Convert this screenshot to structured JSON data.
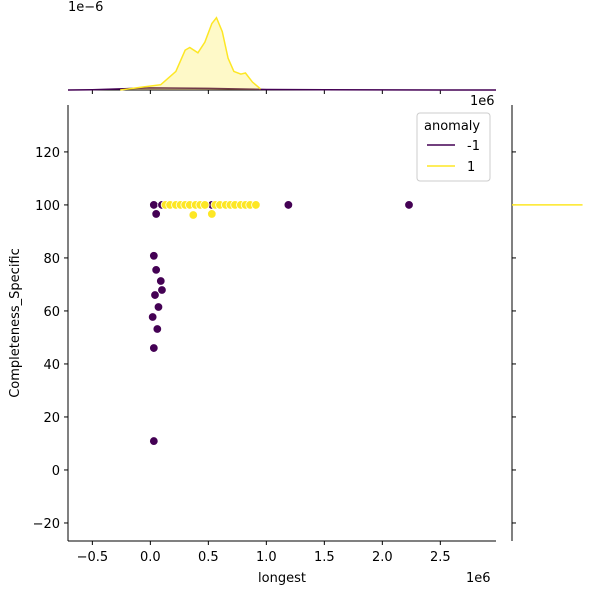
{
  "chart_data": [
    {
      "type": "scatter",
      "x_label": "longest",
      "y_label": "Completeness_Specific",
      "x_offset_label": "1e6",
      "xlim": [
        -0.71,
        2.98
      ],
      "ylim": [
        -26.8,
        137.7
      ],
      "xticks": [
        {
          "value": -0.5,
          "label": "−0.5"
        },
        {
          "value": 0,
          "label": "0.0"
        },
        0.5,
        {
          "value": 1,
          "label": "1.0"
        },
        1.5,
        {
          "value": 2,
          "label": "2.0"
        },
        2.5
      ],
      "yticks": [
        {
          "value": -20,
          "label": "−20"
        },
        0,
        20,
        40,
        60,
        80,
        100,
        120
      ],
      "legend_title": "anomaly",
      "legend_loc": "upper right",
      "series": [
        {
          "name": "-1",
          "color": "#440154",
          "x": [
            0.03,
            0.1,
            0.53,
            1.19,
            2.23,
            0.03,
            0.05,
            0.09,
            0.1,
            0.04,
            0.07,
            0.02,
            0.06,
            0.03,
            0.03,
            0.05
          ],
          "values": [
            100,
            100,
            100,
            100,
            100,
            80.8,
            75.5,
            71.3,
            67.9,
            66,
            61.5,
            57.7,
            53.2,
            46,
            10.9,
            96.6
          ]
        },
        {
          "name": "1",
          "color": "#fde725",
          "x": [
            0.13,
            0.17,
            0.22,
            0.26,
            0.3,
            0.34,
            0.39,
            0.43,
            0.47,
            0.56,
            0.6,
            0.65,
            0.69,
            0.73,
            0.78,
            0.82,
            0.86,
            0.91,
            0.37,
            0.53
          ],
          "values": [
            100,
            100,
            100,
            100,
            100,
            100,
            100,
            100,
            100,
            100,
            100,
            100,
            100,
            100,
            100,
            100,
            100,
            100,
            96.2,
            96.6
          ]
        }
      ]
    },
    {
      "type": "area",
      "y_offset_label": "1e−6",
      "xlim": [
        -0.71,
        2.98
      ],
      "ylim": [
        0,
        1.6
      ],
      "series": [
        {
          "name": "-1",
          "color": "#440154",
          "x": [
            -0.71,
            -0.5,
            0,
            0.5,
            1.0,
            1.5,
            2.5,
            2.98
          ],
          "values": [
            0,
            0.005,
            0.04,
            0.03,
            0.01,
            0.004,
            0.001,
            0
          ]
        },
        {
          "name": "1",
          "color": "#fde725",
          "x": [
            -0.26,
            -0.09,
            0.09,
            0.22,
            0.3,
            0.34,
            0.41,
            0.47,
            0.53,
            0.57,
            0.62,
            0.67,
            0.72,
            0.78,
            0.82,
            0.88,
            0.95
          ],
          "values": [
            0,
            0.05,
            0.1,
            0.35,
            0.75,
            0.8,
            0.7,
            0.9,
            1.25,
            1.36,
            1.1,
            0.6,
            0.35,
            0.3,
            0.32,
            0.15,
            0.02
          ]
        }
      ]
    },
    {
      "type": "hline",
      "x_offset_label": "1e6",
      "xlim": [
        0,
        1
      ],
      "ylim": [
        -26.8,
        137.7
      ],
      "series": [
        {
          "name": "1",
          "color": "#fde725",
          "x": [
            0,
            0.84
          ],
          "values": [
            100,
            100
          ]
        }
      ]
    }
  ]
}
